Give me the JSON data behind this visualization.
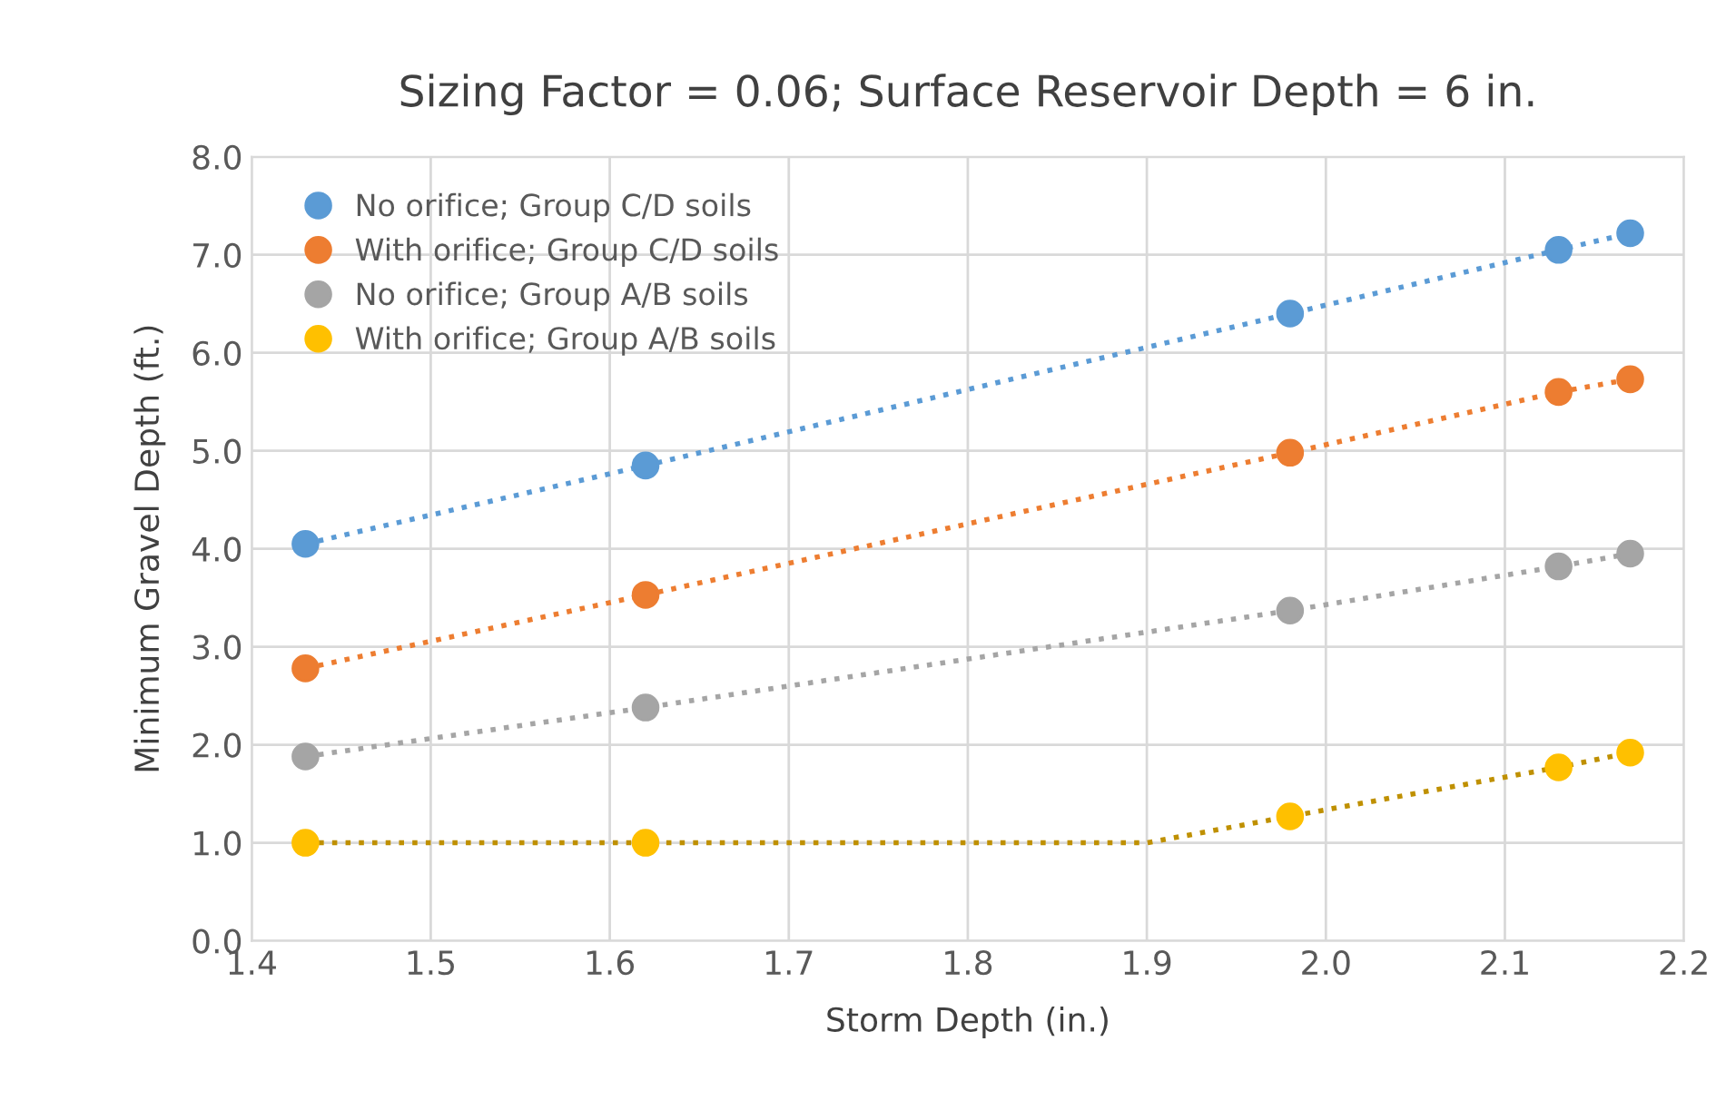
{
  "chart_data": {
    "type": "line",
    "title": "Sizing Factor = 0.06; Surface Reservoir Depth = 6 in.",
    "xlabel": "Storm Depth (in.)",
    "ylabel": "Minimum Gravel Depth (ft.)",
    "x": [
      1.43,
      1.62,
      1.98,
      2.13,
      2.17
    ],
    "series": [
      {
        "name": "No orifice; Group C/D soils",
        "color": "#5b9bd5",
        "values": [
          4.05,
          4.85,
          6.4,
          7.05,
          7.22
        ]
      },
      {
        "name": "With orifice; Group C/D soils",
        "color": "#ed7d31",
        "values": [
          2.78,
          3.53,
          4.98,
          5.6,
          5.73
        ]
      },
      {
        "name": "No orifice; Group A/B soils",
        "color": "#a5a5a5",
        "values": [
          1.88,
          2.38,
          3.37,
          3.82,
          3.95
        ]
      },
      {
        "type": "line",
        "color": "#bf9000",
        "marker": "none",
        "x": [
          1.43,
          1.62,
          1.9,
          1.98,
          2.13,
          2.17
        ],
        "values": [
          1.0,
          1.0,
          1.0,
          1.27,
          1.77,
          1.92
        ]
      },
      {
        "name": "With orifice; Group A/B soils",
        "type": "scatter",
        "color": "#ffc000",
        "values": [
          1.0,
          1.0,
          1.27,
          1.77,
          1.92
        ]
      }
    ],
    "marker": "circle",
    "line_style": "dotted",
    "xlim": [
      1.4,
      2.2
    ],
    "xticks": [
      {
        "value": 1.4,
        "label": "1.4"
      },
      {
        "value": 1.5,
        "label": "1.5"
      },
      {
        "value": 1.6,
        "label": "1.6"
      },
      {
        "value": 1.7,
        "label": "1.7"
      },
      {
        "value": 1.8,
        "label": "1.8"
      },
      {
        "value": 1.9,
        "label": "1.9"
      },
      {
        "value": 2.0,
        "label": "2.0"
      },
      {
        "value": 2.1,
        "label": "2.1"
      },
      {
        "value": 2.2,
        "label": "2.2"
      }
    ],
    "ylim": [
      0,
      8
    ],
    "yticks": [
      {
        "value": 0,
        "label": "0.0"
      },
      {
        "value": 1,
        "label": "1.0"
      },
      {
        "value": 2,
        "label": "2.0"
      },
      {
        "value": 3,
        "label": "3.0"
      },
      {
        "value": 4,
        "label": "4.0"
      },
      {
        "value": 5,
        "label": "5.0"
      },
      {
        "value": 6,
        "label": "6.0"
      },
      {
        "value": 7,
        "label": "7.0"
      },
      {
        "value": 8,
        "label": "8.0"
      }
    ],
    "grid": true,
    "legend": "top left"
  }
}
